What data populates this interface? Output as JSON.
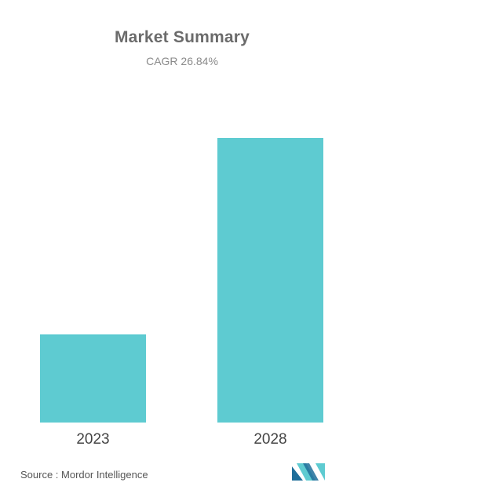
{
  "title": "Market Summary",
  "subtitle": "CAGR 26.84%",
  "source": "Source :  Mordor Intelligence",
  "colors": {
    "bar": "#5ecbd1",
    "title": "#6b6b6b",
    "subtitle": "#8a8a8a",
    "tick": "#444444",
    "logo_dark": "#1f6e9a",
    "logo_light": "#5ecbd1"
  },
  "logo_icon": "mordor-intelligence-logo-icon",
  "chart_data": {
    "type": "bar",
    "title": "Market Summary",
    "subtitle": "CAGR 26.84%",
    "categories": [
      "2023",
      "2028"
    ],
    "values": [
      31,
      100
    ],
    "grid": false,
    "legend": "none"
  }
}
